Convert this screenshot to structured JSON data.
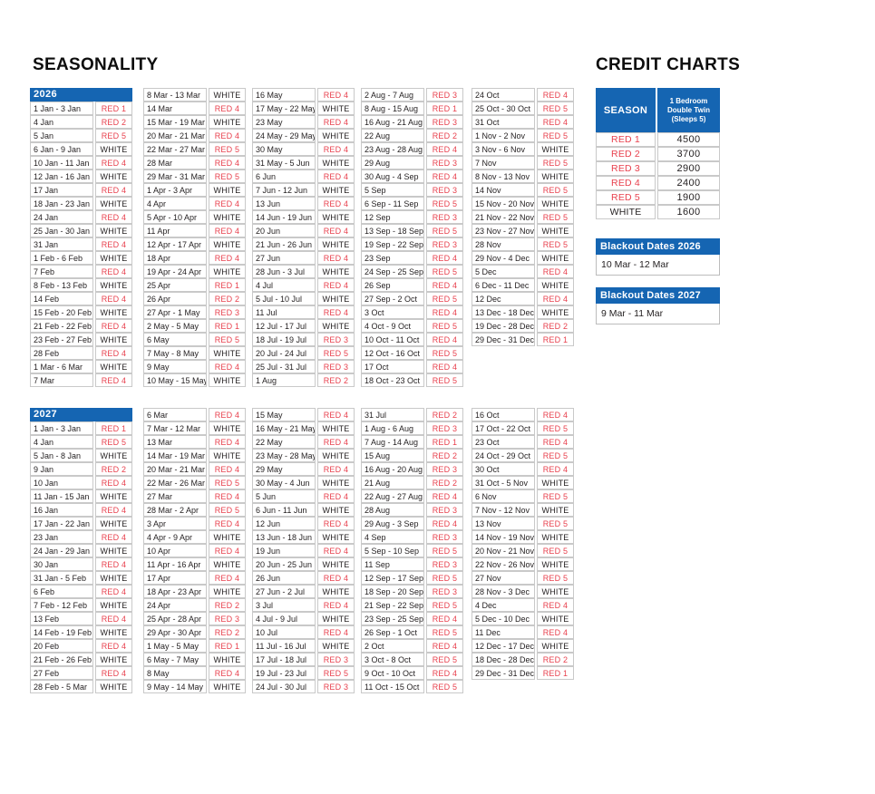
{
  "colors": {
    "blue": "#1565b2",
    "red": "#e8414e"
  },
  "titles": {
    "seasonality": "SEASONALITY",
    "credit_charts": "CREDIT CHARTS"
  },
  "seasonality": {
    "y2026": {
      "label": "2026",
      "col1": [
        [
          "1 Jan - 3 Jan",
          "RED 1"
        ],
        [
          "4 Jan",
          "RED 2"
        ],
        [
          "5 Jan",
          "RED 5"
        ],
        [
          "6 Jan - 9 Jan",
          "WHITE"
        ],
        [
          "10 Jan - 11 Jan",
          "RED 4"
        ],
        [
          "12 Jan - 16 Jan",
          "WHITE"
        ],
        [
          "17 Jan",
          "RED 4"
        ],
        [
          "18 Jan - 23 Jan",
          "WHITE"
        ],
        [
          "24 Jan",
          "RED 4"
        ],
        [
          "25 Jan - 30 Jan",
          "WHITE"
        ],
        [
          "31 Jan",
          "RED 4"
        ],
        [
          "1 Feb - 6 Feb",
          "WHITE"
        ],
        [
          "7 Feb",
          "RED 4"
        ],
        [
          "8 Feb - 13 Feb",
          "WHITE"
        ],
        [
          "14 Feb",
          "RED 4"
        ],
        [
          "15 Feb - 20 Feb",
          "WHITE"
        ],
        [
          "21 Feb - 22 Feb",
          "RED 4"
        ],
        [
          "23 Feb - 27 Feb",
          "WHITE"
        ],
        [
          "28 Feb",
          "RED 4"
        ],
        [
          "1 Mar - 6 Mar",
          "WHITE"
        ],
        [
          "7 Mar",
          "RED 4"
        ]
      ],
      "col2": [
        [
          "8 Mar - 13 Mar",
          "WHITE"
        ],
        [
          "14 Mar",
          "RED 4"
        ],
        [
          "15 Mar - 19 Mar",
          "WHITE"
        ],
        [
          "20 Mar - 21 Mar",
          "RED 4"
        ],
        [
          "22 Mar - 27 Mar",
          "RED 5"
        ],
        [
          "28 Mar",
          "RED 4"
        ],
        [
          "29 Mar - 31 Mar",
          "RED 5"
        ],
        [
          "1 Apr - 3 Apr",
          "WHITE"
        ],
        [
          "4 Apr",
          "RED 4"
        ],
        [
          "5 Apr - 10 Apr",
          "WHITE"
        ],
        [
          "11 Apr",
          "RED 4"
        ],
        [
          "12 Apr - 17 Apr",
          "WHITE"
        ],
        [
          "18 Apr",
          "RED 4"
        ],
        [
          "19 Apr - 24 Apr",
          "WHITE"
        ],
        [
          "25 Apr",
          "RED 1"
        ],
        [
          "26 Apr",
          "RED 2"
        ],
        [
          "27 Apr - 1 May",
          "RED 3"
        ],
        [
          "2 May - 5 May",
          "RED 1"
        ],
        [
          "6 May",
          "RED 5"
        ],
        [
          "7 May - 8 May",
          "WHITE"
        ],
        [
          "9 May",
          "RED 4"
        ],
        [
          "10 May - 15 May",
          "WHITE"
        ]
      ],
      "col3": [
        [
          "16 May",
          "RED 4"
        ],
        [
          "17 May - 22 May",
          "WHITE"
        ],
        [
          "23 May",
          "RED 4"
        ],
        [
          "24 May - 29 May",
          "WHITE"
        ],
        [
          "30 May",
          "RED 4"
        ],
        [
          "31 May - 5 Jun",
          "WHITE"
        ],
        [
          "6 Jun",
          "RED 4"
        ],
        [
          "7 Jun - 12 Jun",
          "WHITE"
        ],
        [
          "13 Jun",
          "RED 4"
        ],
        [
          "14 Jun - 19 Jun",
          "WHITE"
        ],
        [
          "20 Jun",
          "RED 4"
        ],
        [
          "21 Jun - 26 Jun",
          "WHITE"
        ],
        [
          "27 Jun",
          "RED 4"
        ],
        [
          "28 Jun - 3 Jul",
          "WHITE"
        ],
        [
          "4 Jul",
          "RED 4"
        ],
        [
          "5 Jul - 10 Jul",
          "WHITE"
        ],
        [
          "11 Jul",
          "RED 4"
        ],
        [
          "12 Jul - 17 Jul",
          "WHITE"
        ],
        [
          "18 Jul - 19 Jul",
          "RED 3"
        ],
        [
          "20 Jul - 24 Jul",
          "RED 5"
        ],
        [
          "25 Jul - 31 Jul",
          "RED 3"
        ],
        [
          "1 Aug",
          "RED 2"
        ]
      ],
      "col4": [
        [
          "2 Aug - 7 Aug",
          "RED 3"
        ],
        [
          "8 Aug - 15 Aug",
          "RED 1"
        ],
        [
          "16 Aug - 21 Aug",
          "RED 3"
        ],
        [
          "22 Aug",
          "RED 2"
        ],
        [
          "23 Aug - 28 Aug",
          "RED 4"
        ],
        [
          "29 Aug",
          "RED 3"
        ],
        [
          "30 Aug - 4 Sep",
          "RED 4"
        ],
        [
          "5 Sep",
          "RED 3"
        ],
        [
          "6 Sep - 11 Sep",
          "RED 5"
        ],
        [
          "12 Sep",
          "RED 3"
        ],
        [
          "13 Sep - 18 Sep",
          "RED 5"
        ],
        [
          "19 Sep - 22 Sep",
          "RED 3"
        ],
        [
          "23 Sep",
          "RED 4"
        ],
        [
          "24 Sep - 25 Sep",
          "RED 5"
        ],
        [
          "26 Sep",
          "RED 4"
        ],
        [
          "27 Sep - 2 Oct",
          "RED 5"
        ],
        [
          "3 Oct",
          "RED 4"
        ],
        [
          "4 Oct - 9 Oct",
          "RED 5"
        ],
        [
          "10 Oct - 11 Oct",
          "RED 4"
        ],
        [
          "12 Oct - 16 Oct",
          "RED 5"
        ],
        [
          "17 Oct",
          "RED 4"
        ],
        [
          "18 Oct - 23 Oct",
          "RED 5"
        ]
      ],
      "col5": [
        [
          "24 Oct",
          "RED 4"
        ],
        [
          "25 Oct - 30 Oct",
          "RED 5"
        ],
        [
          "31 Oct",
          "RED 4"
        ],
        [
          "1 Nov - 2 Nov",
          "RED 5"
        ],
        [
          "3 Nov - 6 Nov",
          "WHITE"
        ],
        [
          "7 Nov",
          "RED 5"
        ],
        [
          "8 Nov - 13 Nov",
          "WHITE"
        ],
        [
          "14 Nov",
          "RED 5"
        ],
        [
          "15 Nov - 20 Nov",
          "WHITE"
        ],
        [
          "21 Nov - 22 Nov",
          "RED 5"
        ],
        [
          "23 Nov - 27 Nov",
          "WHITE"
        ],
        [
          "28 Nov",
          "RED 5"
        ],
        [
          "29 Nov - 4 Dec",
          "WHITE"
        ],
        [
          "5 Dec",
          "RED 4"
        ],
        [
          "6 Dec - 11 Dec",
          "WHITE"
        ],
        [
          "12 Dec",
          "RED 4"
        ],
        [
          "13 Dec - 18 Dec",
          "WHITE"
        ],
        [
          "19 Dec - 28 Dec",
          "RED 2"
        ],
        [
          "29 Dec - 31 Dec",
          "RED 1"
        ]
      ]
    },
    "y2027": {
      "label": "2027",
      "col1": [
        [
          "1 Jan - 3 Jan",
          "RED 1"
        ],
        [
          "4 Jan",
          "RED 5"
        ],
        [
          "5 Jan - 8 Jan",
          "WHITE"
        ],
        [
          "9 Jan",
          "RED 2"
        ],
        [
          "10 Jan",
          "RED 4"
        ],
        [
          "11 Jan - 15 Jan",
          "WHITE"
        ],
        [
          "16 Jan",
          "RED 4"
        ],
        [
          "17 Jan - 22 Jan",
          "WHITE"
        ],
        [
          "23 Jan",
          "RED 4"
        ],
        [
          "24 Jan - 29 Jan",
          "WHITE"
        ],
        [
          "30 Jan",
          "RED 4"
        ],
        [
          "31 Jan - 5 Feb",
          "WHITE"
        ],
        [
          "6 Feb",
          "RED 4"
        ],
        [
          "7 Feb - 12 Feb",
          "WHITE"
        ],
        [
          "13 Feb",
          "RED 4"
        ],
        [
          "14 Feb - 19 Feb",
          "WHITE"
        ],
        [
          "20 Feb",
          "RED 4"
        ],
        [
          "21 Feb - 26 Feb",
          "WHITE"
        ],
        [
          "27 Feb",
          "RED 4"
        ],
        [
          "28 Feb - 5 Mar",
          "WHITE"
        ]
      ],
      "col2": [
        [
          "6 Mar",
          "RED 4"
        ],
        [
          "7 Mar - 12 Mar",
          "WHITE"
        ],
        [
          "13 Mar",
          "RED 4"
        ],
        [
          "14 Mar - 19 Mar",
          "WHITE"
        ],
        [
          "20 Mar - 21 Mar",
          "RED 4"
        ],
        [
          "22 Mar - 26 Mar",
          "RED 5"
        ],
        [
          "27 Mar",
          "RED 4"
        ],
        [
          "28 Mar - 2 Apr",
          "RED 5"
        ],
        [
          "3 Apr",
          "RED 4"
        ],
        [
          "4 Apr - 9 Apr",
          "WHITE"
        ],
        [
          "10 Apr",
          "RED 4"
        ],
        [
          "11 Apr - 16 Apr",
          "WHITE"
        ],
        [
          "17 Apr",
          "RED 4"
        ],
        [
          "18 Apr - 23 Apr",
          "WHITE"
        ],
        [
          "24 Apr",
          "RED 2"
        ],
        [
          "25 Apr - 28 Apr",
          "RED 3"
        ],
        [
          "29 Apr - 30 Apr",
          "RED 2"
        ],
        [
          "1 May - 5 May",
          "RED 1"
        ],
        [
          "6 May - 7 May",
          "WHITE"
        ],
        [
          "8 May",
          "RED 4"
        ],
        [
          "9 May - 14 May",
          "WHITE"
        ]
      ],
      "col3": [
        [
          "15 May",
          "RED 4"
        ],
        [
          "16 May - 21 May",
          "WHITE"
        ],
        [
          "22 May",
          "RED 4"
        ],
        [
          "23 May - 28 May",
          "WHITE"
        ],
        [
          "29 May",
          "RED 4"
        ],
        [
          "30 May - 4 Jun",
          "WHITE"
        ],
        [
          "5 Jun",
          "RED 4"
        ],
        [
          "6 Jun - 11 Jun",
          "WHITE"
        ],
        [
          "12 Jun",
          "RED 4"
        ],
        [
          "13 Jun - 18 Jun",
          "WHITE"
        ],
        [
          "19 Jun",
          "RED 4"
        ],
        [
          "20 Jun - 25 Jun",
          "WHITE"
        ],
        [
          "26 Jun",
          "RED 4"
        ],
        [
          "27 Jun - 2 Jul",
          "WHITE"
        ],
        [
          "3 Jul",
          "RED 4"
        ],
        [
          "4 Jul - 9 Jul",
          "WHITE"
        ],
        [
          "10 Jul",
          "RED 4"
        ],
        [
          "11 Jul - 16 Jul",
          "WHITE"
        ],
        [
          "17 Jul - 18 Jul",
          "RED 3"
        ],
        [
          "19 Jul - 23 Jul",
          "RED 5"
        ],
        [
          "24 Jul - 30 Jul",
          "RED 3"
        ]
      ],
      "col4": [
        [
          "31 Jul",
          "RED 2"
        ],
        [
          "1 Aug - 6 Aug",
          "RED 3"
        ],
        [
          "7 Aug - 14 Aug",
          "RED 1"
        ],
        [
          "15 Aug",
          "RED 2"
        ],
        [
          "16 Aug - 20 Aug",
          "RED 3"
        ],
        [
          "21 Aug",
          "RED 2"
        ],
        [
          "22 Aug - 27 Aug",
          "RED 4"
        ],
        [
          "28 Aug",
          "RED 3"
        ],
        [
          "29 Aug - 3 Sep",
          "RED 4"
        ],
        [
          "4 Sep",
          "RED 3"
        ],
        [
          "5 Sep - 10 Sep",
          "RED 5"
        ],
        [
          "11 Sep",
          "RED 3"
        ],
        [
          "12 Sep - 17 Sep",
          "RED 5"
        ],
        [
          "18 Sep - 20 Sep",
          "RED 3"
        ],
        [
          "21 Sep - 22 Sep",
          "RED 5"
        ],
        [
          "23 Sep - 25 Sep",
          "RED 4"
        ],
        [
          "26 Sep - 1 Oct",
          "RED 5"
        ],
        [
          "2 Oct",
          "RED 4"
        ],
        [
          "3 Oct - 8 Oct",
          "RED 5"
        ],
        [
          "9 Oct - 10 Oct",
          "RED 4"
        ],
        [
          "11 Oct - 15 Oct",
          "RED 5"
        ]
      ],
      "col5": [
        [
          "16 Oct",
          "RED 4"
        ],
        [
          "17 Oct - 22 Oct",
          "RED 5"
        ],
        [
          "23 Oct",
          "RED 4"
        ],
        [
          "24 Oct - 29 Oct",
          "RED 5"
        ],
        [
          "30 Oct",
          "RED 4"
        ],
        [
          "31 Oct - 5 Nov",
          "WHITE"
        ],
        [
          "6 Nov",
          "RED 5"
        ],
        [
          "7 Nov - 12 Nov",
          "WHITE"
        ],
        [
          "13 Nov",
          "RED 5"
        ],
        [
          "14 Nov - 19 Nov",
          "WHITE"
        ],
        [
          "20 Nov - 21 Nov",
          "RED 5"
        ],
        [
          "22 Nov - 26 Nov",
          "WHITE"
        ],
        [
          "27 Nov",
          "RED 5"
        ],
        [
          "28 Nov - 3 Dec",
          "WHITE"
        ],
        [
          "4 Dec",
          "RED 4"
        ],
        [
          "5 Dec - 10 Dec",
          "WHITE"
        ],
        [
          "11 Dec",
          "RED 4"
        ],
        [
          "12 Dec - 17 Dec",
          "WHITE"
        ],
        [
          "18 Dec - 28 Dec",
          "RED 2"
        ],
        [
          "29 Dec - 31 Dec",
          "RED 1"
        ]
      ]
    }
  },
  "credit_chart": {
    "header_season": "SEASON",
    "header_room_line1": "1 Bedroom",
    "header_room_line2": "Double Twin",
    "header_room_line3": "(Sleeps 5)",
    "rows": [
      [
        "RED 1",
        "4500"
      ],
      [
        "RED 2",
        "3700"
      ],
      [
        "RED 3",
        "2900"
      ],
      [
        "RED 4",
        "2400"
      ],
      [
        "RED 5",
        "1900"
      ],
      [
        "WHITE",
        "1600"
      ]
    ]
  },
  "blackout_2026": {
    "title": "Blackout Dates 2026",
    "dates": "10 Mar - 12 Mar"
  },
  "blackout_2027": {
    "title": "Blackout Dates 2027",
    "dates": "9 Mar - 11 Mar"
  }
}
